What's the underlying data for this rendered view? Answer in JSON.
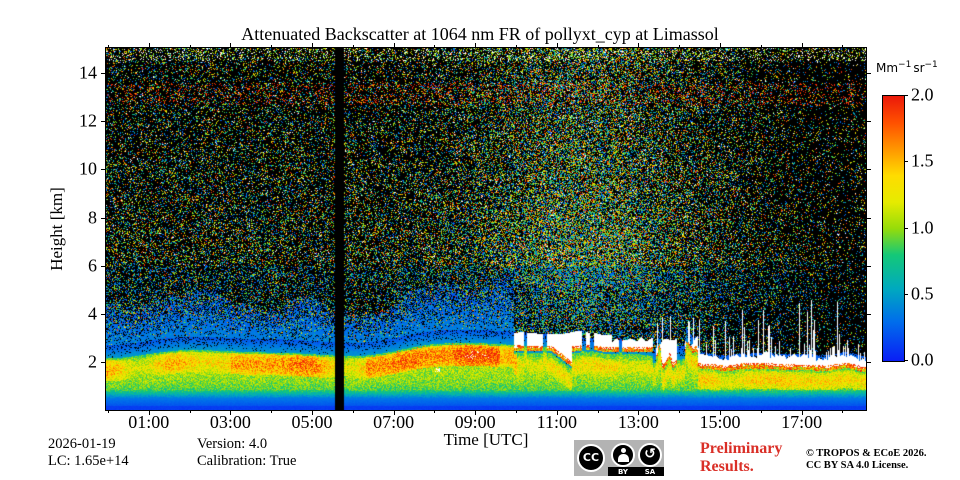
{
  "figure": {
    "title": "Attenuated Backscatter at 1064 nm FR of pollyxt_cyp at Limassol"
  },
  "axes": {
    "x": {
      "label": "Time [UTC]",
      "major_tick_hours": [
        1,
        3,
        5,
        7,
        9,
        11,
        13,
        15,
        17
      ],
      "major_tick_labels": [
        "01:00",
        "03:00",
        "05:00",
        "07:00",
        "09:00",
        "11:00",
        "13:00",
        "15:00",
        "17:00"
      ],
      "minor_tick_hours": [
        0,
        1,
        2,
        3,
        4,
        5,
        6,
        7,
        8,
        9,
        10,
        11,
        12,
        13,
        14,
        15,
        16,
        17,
        18
      ],
      "range_hours": [
        0,
        18.55
      ]
    },
    "y": {
      "label": "Height [km]",
      "tick_values": [
        2,
        4,
        6,
        8,
        10,
        12,
        14
      ],
      "tick_labels": [
        "2",
        "4",
        "6",
        "8",
        "10",
        "12",
        "14"
      ],
      "range_km": [
        0,
        15.05
      ]
    }
  },
  "colorbar": {
    "unit": {
      "base1": "Mm",
      "exp1": "−1",
      "base2": "sr",
      "exp2": "−1"
    },
    "tick_values": [
      0,
      0.5,
      1,
      1.5,
      2
    ],
    "tick_labels": [
      "0.0",
      "0.5",
      "1.0",
      "1.5",
      "2.0"
    ],
    "range": [
      0,
      2
    ]
  },
  "footer": {
    "date": "2026-01-19",
    "lc": "LC: 1.65e+14",
    "version": "Version: 4.0",
    "calibration": "Calibration: True",
    "preliminary_line1": "Preliminary",
    "preliminary_line2": "Results.",
    "preliminary_color": "#da2f27",
    "copyright_line1": "© TROPOS & ECoE 2026.",
    "copyright_line2": "CC BY SA 4.0 License.",
    "badge": {
      "cc": "CC",
      "by": "BY",
      "sa": "SA",
      "bg": "#b3b3b3"
    }
  },
  "chart_data": {
    "type": "heatmap",
    "title": "Attenuated Backscatter at 1064 nm FR of pollyxt_cyp at Limassol",
    "xlabel": "Time [UTC]",
    "ylabel": "Height [km]",
    "x_axis": {
      "unit": "hours UTC",
      "start": 0,
      "end": 18.55,
      "major_tick_labels": [
        "01:00",
        "03:00",
        "05:00",
        "07:00",
        "09:00",
        "11:00",
        "13:00",
        "15:00",
        "17:00"
      ]
    },
    "y_axis": {
      "unit": "km",
      "start": 0,
      "end": 15.05,
      "ticks": [
        2,
        4,
        6,
        8,
        10,
        12,
        14
      ]
    },
    "value": {
      "name": "attenuated backscatter",
      "unit": "Mm−1 sr−1",
      "min": 0,
      "max": 2
    },
    "colormap_stops": [
      [
        0.0,
        [
          10,
          30,
          245
        ]
      ],
      [
        0.3,
        [
          0,
          110,
          235
        ]
      ],
      [
        0.55,
        [
          0,
          170,
          190
        ]
      ],
      [
        0.8,
        [
          20,
          200,
          120
        ]
      ],
      [
        1.0,
        [
          150,
          220,
          10
        ]
      ],
      [
        1.2,
        [
          230,
          235,
          0
        ]
      ],
      [
        1.4,
        [
          255,
          220,
          0
        ]
      ],
      [
        1.6,
        [
          255,
          150,
          0
        ]
      ],
      [
        1.8,
        [
          255,
          80,
          0
        ]
      ],
      [
        2.0,
        [
          235,
          25,
          10
        ]
      ]
    ],
    "over_range_color": [
      255,
      255,
      255
    ],
    "features": {
      "data_gap_hours": [
        5.56,
        5.78
      ],
      "boundary_layer": {
        "top_km": 2.35,
        "yellow_core_km": [
          1.55,
          2.25
        ],
        "peak_value": 1.45,
        "near_ground_blue_below_km": 0.55
      },
      "cloud_layer": {
        "solid_from_hour": 9.95,
        "solid_to_hour": 13.35,
        "base_km": 2.6,
        "top_km": 3.25,
        "broken_from_hour": 13.35,
        "broken_to_hour": 14.45,
        "low_ragged_band_from_hour": 14.45,
        "low_band_base_km": 1.8,
        "appearance": "saturated white (> 2.0) with red/orange fringes"
      },
      "noise_speckle": {
        "above_km": 4.5,
        "daytime_peak_hour": 11.6,
        "red_dot_band_km": [
          12.7,
          13.6
        ],
        "white_dot_band_above_km": 14.55
      }
    },
    "annotations": {
      "date": "2026-01-19",
      "lidar_constant": "1.65e+14",
      "version": "4.0",
      "calibration": "True"
    }
  }
}
